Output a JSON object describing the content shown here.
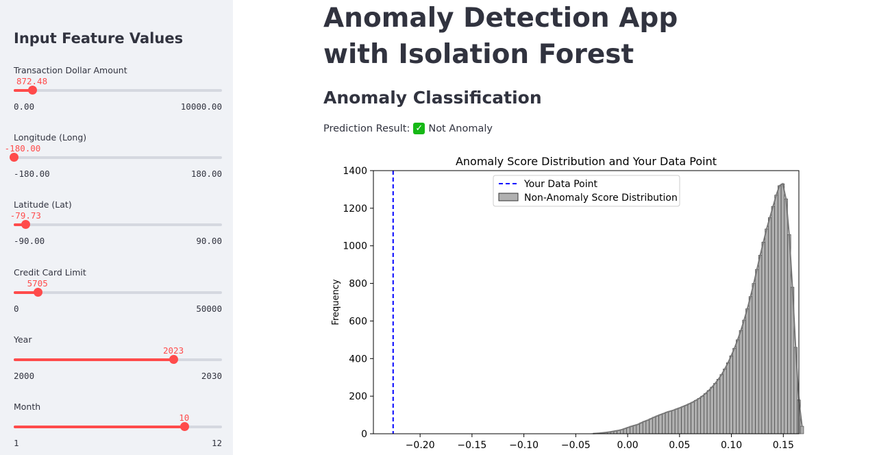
{
  "sidebar": {
    "title": "Input Feature Values",
    "sliders": [
      {
        "label": "Transaction Dollar Amount",
        "value": 872.48,
        "value_text": "872.48",
        "min": 0,
        "max": 10000,
        "min_text": "0.00",
        "max_text": "10000.00"
      },
      {
        "label": "Longitude (Long)",
        "value": -180,
        "value_text": "-180.00",
        "min": -180,
        "max": 180,
        "min_text": "-180.00",
        "max_text": "180.00"
      },
      {
        "label": "Latitude (Lat)",
        "value": -79.73,
        "value_text": "-79.73",
        "min": -90,
        "max": 90,
        "min_text": "-90.00",
        "max_text": "90.00"
      },
      {
        "label": "Credit Card Limit",
        "value": 5705,
        "value_text": "5705",
        "min": 0,
        "max": 50000,
        "min_text": "0",
        "max_text": "50000"
      },
      {
        "label": "Year",
        "value": 2023,
        "value_text": "2023",
        "min": 2000,
        "max": 2030,
        "min_text": "2000",
        "max_text": "2030"
      },
      {
        "label": "Month",
        "value": 10,
        "value_text": "10",
        "min": 1,
        "max": 12,
        "min_text": "1",
        "max_text": "12"
      }
    ]
  },
  "main": {
    "title": "Anomaly Detection App with Isolation Forest",
    "subtitle": "Anomaly Classification",
    "prediction_label": "Prediction Result:",
    "prediction_value": "Not Anomaly",
    "prediction_icon": "check-mark-icon"
  },
  "colors": {
    "accent": "#ff4b4b",
    "sidebar_bg": "#f0f2f6",
    "text": "#31333f",
    "success": "#16b816",
    "data_point_line": "#0000ff",
    "hist_fill": "#b0b0b0"
  },
  "chart_data": {
    "type": "bar",
    "title": "Anomaly Score Distribution and Your Data Point",
    "xlabel": "",
    "ylabel": "Frequency",
    "xlim": [
      -0.245,
      0.165
    ],
    "ylim": [
      0,
      1400
    ],
    "xticks": [
      -0.2,
      -0.15,
      -0.1,
      -0.05,
      0.0,
      0.05,
      0.1,
      0.15
    ],
    "xtick_labels": [
      "−0.20",
      "−0.15",
      "−0.10",
      "−0.05",
      "0.00",
      "0.05",
      "0.10",
      "0.15"
    ],
    "yticks": [
      0,
      200,
      400,
      600,
      800,
      1000,
      1200,
      1400
    ],
    "data_point": {
      "name": "Your Data Point",
      "x": -0.226
    },
    "histogram": {
      "name": "Non-Anomaly Score Distribution",
      "bin_start": -0.035,
      "bin_width": 0.0031,
      "counts": [
        1,
        2,
        3,
        5,
        7,
        9,
        12,
        15,
        18,
        22,
        28,
        34,
        40,
        45,
        50,
        58,
        66,
        72,
        80,
        88,
        95,
        102,
        108,
        115,
        120,
        125,
        132,
        138,
        145,
        152,
        160,
        168,
        178,
        188,
        200,
        214,
        230,
        248,
        268,
        290,
        315,
        345,
        378,
        415,
        455,
        500,
        550,
        605,
        665,
        730,
        800,
        875,
        950,
        1020,
        1090,
        1150,
        1210,
        1270,
        1320,
        1330,
        1250,
        1060,
        780,
        460,
        180,
        40
      ]
    },
    "legend": "top-center",
    "grid": false
  }
}
